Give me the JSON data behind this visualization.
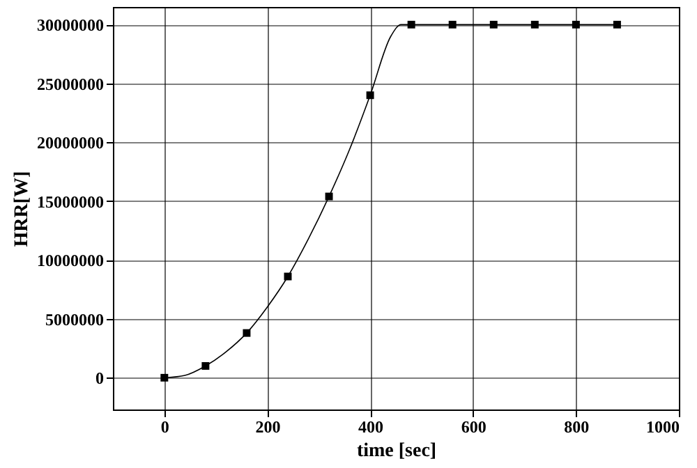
{
  "chart_data": {
    "type": "line",
    "xlabel": "time [sec]",
    "ylabel": "HRR[W]",
    "xlim": [
      -100,
      1000
    ],
    "ylim": [
      -2700000,
      31500000
    ],
    "xticks": [
      0,
      200,
      400,
      600,
      800,
      1000
    ],
    "yticks": [
      0,
      5000000,
      10000000,
      15000000,
      20000000,
      25000000,
      30000000
    ],
    "grid": true,
    "series": [
      {
        "color": "#000000",
        "marker": "none",
        "x": [
          0,
          40,
          80,
          120,
          160,
          200,
          240,
          280,
          320,
          360,
          400,
          440,
          460,
          880
        ],
        "values": [
          0,
          200000,
          1000000,
          2200000,
          3800000,
          6000000,
          8600000,
          11800000,
          15400000,
          19400000,
          24000000,
          29000000,
          30000000,
          30000000
        ]
      },
      {
        "type": "scatter",
        "color": "#000000",
        "marker": "square",
        "x": [
          0,
          80,
          160,
          240,
          320,
          400,
          480,
          560,
          640,
          720,
          800,
          880
        ],
        "values": [
          0,
          1000000,
          3800000,
          8600000,
          15400000,
          24000000,
          30000000,
          30000000,
          30000000,
          30000000,
          30000000,
          30000000
        ]
      }
    ]
  }
}
